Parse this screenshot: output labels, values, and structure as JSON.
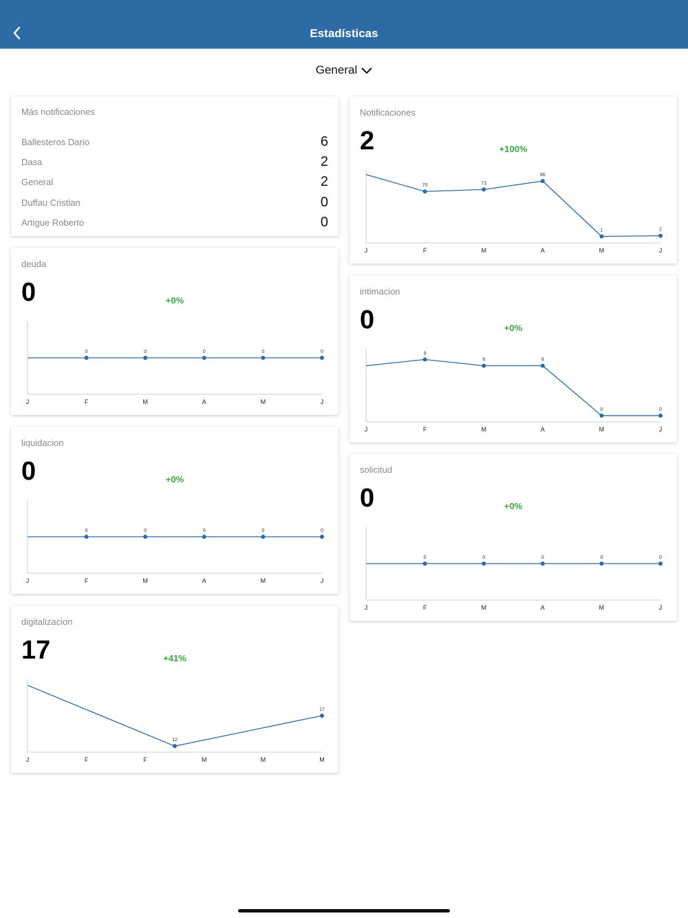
{
  "header": {
    "title": "Estadísticas",
    "back_icon": "chevron-left-icon",
    "color": "#2d6ba5"
  },
  "selector": {
    "value": "General",
    "icon": "chevron-down-icon"
  },
  "top_list": {
    "title": "Más notificaciones",
    "items": [
      {
        "name": "Ballesteros Dario",
        "value": "6"
      },
      {
        "name": "Dasa",
        "value": "2"
      },
      {
        "name": "General",
        "value": "2"
      },
      {
        "name": "Duffau Cristian",
        "value": "0"
      },
      {
        "name": "Artigue Roberto",
        "value": "0"
      }
    ]
  },
  "chart_data": [
    {
      "id": "notificaciones",
      "type": "line",
      "title": "Notificaciones",
      "total": "2",
      "change": "+100%",
      "categories": [
        "J",
        "F",
        "M",
        "A",
        "M",
        "J"
      ],
      "x": [
        0,
        1,
        2,
        3,
        4,
        5
      ],
      "values": [
        96,
        70,
        73,
        86,
        1,
        2
      ],
      "labels": [
        null,
        "70",
        "73",
        "86",
        "1",
        "2"
      ],
      "ylim": [
        -9,
        103
      ],
      "color": "#2d6ba5"
    },
    {
      "id": "deuda",
      "type": "line",
      "title": "deuda",
      "total": "0",
      "change": "+0%",
      "categories": [
        "J",
        "F",
        "M",
        "A",
        "M",
        "J"
      ],
      "x": [
        0,
        1,
        2,
        3,
        4,
        5
      ],
      "values": [
        0,
        0,
        0,
        0,
        0,
        0
      ],
      "labels": [
        null,
        "0",
        "0",
        "0",
        "0",
        "0"
      ],
      "ylim": [
        -1,
        1
      ],
      "color": "#2d6ba5"
    },
    {
      "id": "intimacion",
      "type": "line",
      "title": "intimacion",
      "total": "0",
      "change": "+0%",
      "categories": [
        "J",
        "F",
        "M",
        "A",
        "M",
        "J"
      ],
      "x": [
        0,
        1,
        2,
        3,
        4,
        5
      ],
      "values": [
        8,
        9,
        8,
        8,
        0,
        0
      ],
      "labels": [
        null,
        "9",
        "8",
        "8",
        "0",
        "0"
      ],
      "ylim": [
        -1,
        10.7
      ],
      "color": "#2d6ba5"
    },
    {
      "id": "liquidacion",
      "type": "line",
      "title": "liquidacion",
      "total": "0",
      "change": "+0%",
      "categories": [
        "J",
        "F",
        "M",
        "A",
        "M",
        "J"
      ],
      "x": [
        0,
        1,
        2,
        3,
        4,
        5
      ],
      "values": [
        0,
        0,
        0,
        0,
        0,
        0
      ],
      "labels": [
        null,
        "0",
        "0",
        "0",
        "0",
        "0"
      ],
      "ylim": [
        -1,
        1
      ],
      "color": "#2d6ba5"
    },
    {
      "id": "solicitud",
      "type": "line",
      "title": "solicitud",
      "total": "0",
      "change": "+0%",
      "categories": [
        "J",
        "F",
        "M",
        "A",
        "M",
        "J"
      ],
      "x": [
        0,
        1,
        2,
        3,
        4,
        5
      ],
      "values": [
        0,
        0,
        0,
        0,
        0,
        0
      ],
      "labels": [
        null,
        "0",
        "0",
        "0",
        "0",
        "0"
      ],
      "ylim": [
        -1,
        1
      ],
      "color": "#2d6ba5"
    },
    {
      "id": "digitalizacion",
      "type": "line",
      "title": "digitalizacion",
      "total": "17",
      "change": "+41%",
      "categories": [
        "J",
        "F",
        "F",
        "M",
        "M",
        "M"
      ],
      "x": [
        0,
        2.5,
        5
      ],
      "values": [
        22,
        12,
        17
      ],
      "labels": [
        null,
        "12",
        "17"
      ],
      "ylim": [
        11,
        23
      ],
      "color": "#2d6ba5"
    }
  ]
}
